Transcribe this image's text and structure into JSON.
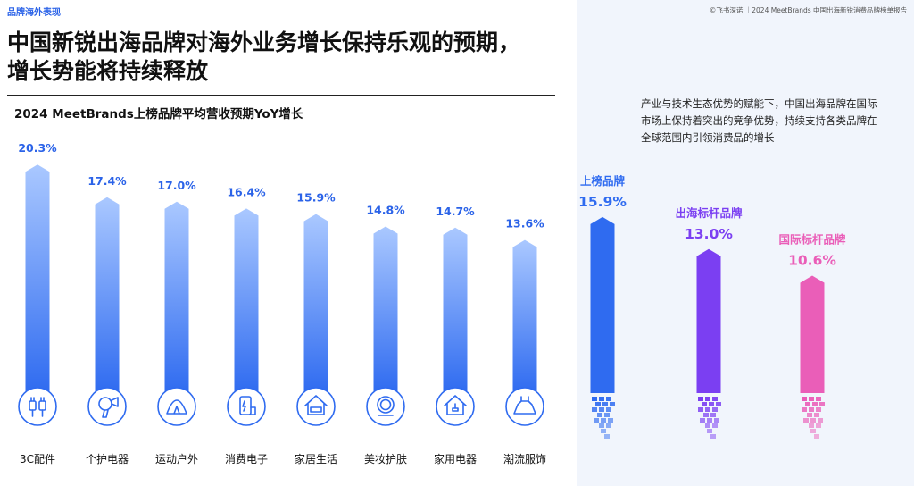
{
  "header": {
    "section_tag": "品牌海外表现",
    "source": "©飞书深诺 ｜2024 MeetBrands 中国出海新锐消费品牌榜单报告",
    "title_line1": "中国新锐出海品牌对海外业务增长保持乐观的预期，",
    "title_line2": "增长势能将持续释放"
  },
  "note_text": "产业与技术生态优势的赋能下，中国出海品牌在国际市场上保持着突出的竞争优势，持续支持各类品牌在全球范围内引领消费品的增长",
  "colors": {
    "category_bar_top": "#aac8ff",
    "category_bar_bottom": "#2f6bf0",
    "listed": "#2f6bf0",
    "overseas": "#7b3ff2",
    "international": "#ea5eb8",
    "label_blue": "#2b63e8"
  },
  "chart_data": [
    {
      "type": "bar",
      "title": "2024 MeetBrands上榜品牌平均营收预期YoY增长",
      "categories": [
        "3C配件",
        "个护电器",
        "运动户外",
        "消费电子",
        "家居生活",
        "美妆护肤",
        "家用电器",
        "潮流服饰"
      ],
      "values": [
        20.3,
        17.4,
        17.0,
        16.4,
        15.9,
        14.8,
        14.7,
        13.6
      ],
      "value_labels": [
        "20.3%",
        "17.4%",
        "17.0%",
        "16.4%",
        "15.9%",
        "14.8%",
        "14.7%",
        "13.6%"
      ],
      "icons": [
        "plug-icon",
        "hair-dryer-icon",
        "tent-icon",
        "phone-icon",
        "home-furniture-icon",
        "mirror-icon",
        "home-plug-icon",
        "dress-icon"
      ],
      "unit": "%",
      "grid": false
    },
    {
      "type": "bar",
      "categories": [
        "上榜品牌",
        "出海标杆品牌",
        "国际标杆品牌"
      ],
      "values": [
        15.9,
        13.0,
        10.6
      ],
      "value_labels": [
        "15.9%",
        "13.0%",
        "10.6%"
      ],
      "unit": "%",
      "grid": false
    }
  ]
}
